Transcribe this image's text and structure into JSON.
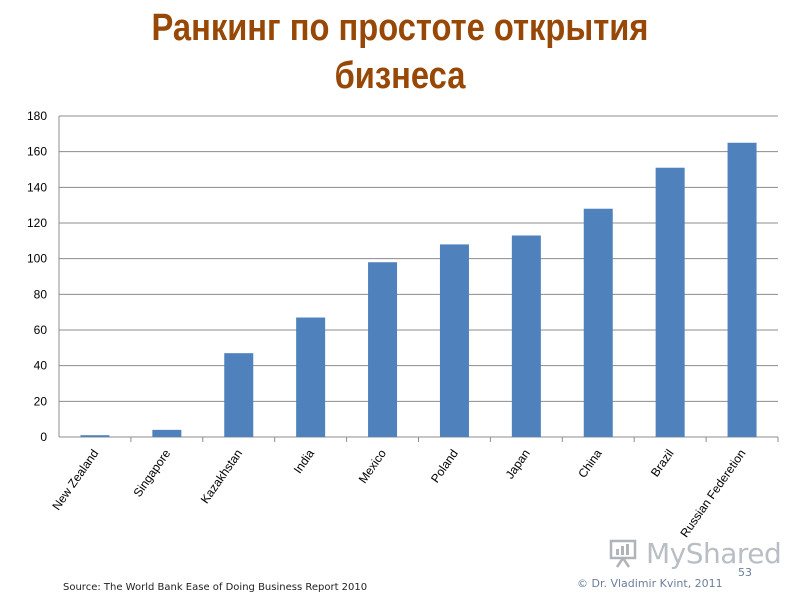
{
  "title": {
    "line1": "Ранкинг по простоте открытия",
    "line2": "бизнеса"
  },
  "chart_data": {
    "type": "bar",
    "categories": [
      "New Zealand",
      "Singapore",
      "Kazakhstan",
      "India",
      "Mexico",
      "Poland",
      "Japan",
      "China",
      "Brazil",
      "Russian Federetion"
    ],
    "values": [
      1,
      4,
      47,
      67,
      98,
      108,
      113,
      128,
      151,
      165
    ],
    "ylim": [
      0,
      180
    ],
    "yticks": [
      0,
      20,
      40,
      60,
      80,
      100,
      120,
      140,
      160,
      180
    ],
    "grid": true,
    "bar_color": "#4f81bd",
    "grid_color": "#8c8c8c"
  },
  "footer": {
    "source": "Source: The World Bank Ease of Doing Business Report 2010",
    "copyright": "© Dr. Vladimir Kvint, 2011",
    "page_number": "53"
  },
  "watermark": {
    "text": "MyShared",
    "icon": "presentation-board-icon"
  }
}
